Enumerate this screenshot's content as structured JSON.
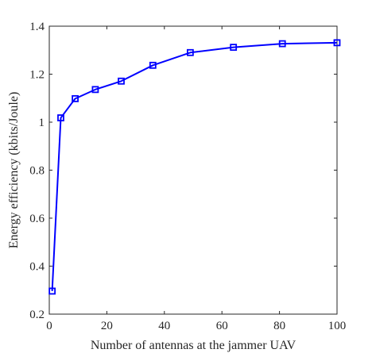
{
  "chart_data": {
    "type": "line",
    "title": "",
    "xlabel": "Number of antennas at the jammer UAV",
    "ylabel": "Energy efficiency (kbits/Joule)",
    "xlim": [
      0,
      100
    ],
    "ylim": [
      0.2,
      1.4
    ],
    "xticks": [
      0,
      20,
      40,
      60,
      80,
      100
    ],
    "xtick_labels": [
      "0",
      "20",
      "40",
      "60",
      "80",
      "100"
    ],
    "yticks": [
      0.2,
      0.4,
      0.6,
      0.8,
      1.0,
      1.2,
      1.4
    ],
    "ytick_labels": [
      "0.2",
      "0.4",
      "0.6",
      "0.8",
      "1",
      "1.2",
      "1.4"
    ],
    "grid": false,
    "series": [
      {
        "marker": "square",
        "color": "#0000ff",
        "x": [
          1,
          4,
          9,
          16,
          25,
          36,
          49,
          64,
          81,
          100
        ],
        "y": [
          0.296,
          1.018,
          1.098,
          1.136,
          1.171,
          1.237,
          1.29,
          1.312,
          1.327,
          1.331
        ]
      }
    ]
  }
}
